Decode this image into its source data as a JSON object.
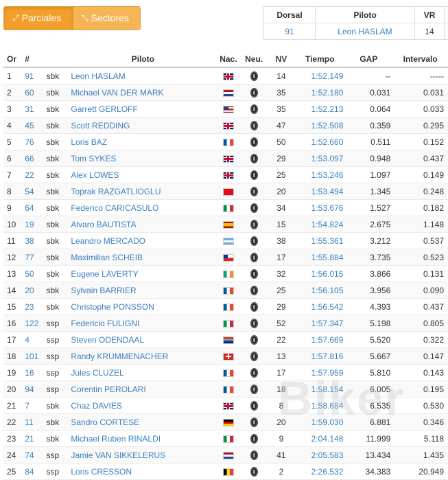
{
  "tabs": {
    "partials": "Parciales",
    "sectors": "Sectores"
  },
  "rider_box": {
    "headers": {
      "dorsal": "Dorsal",
      "piloto": "Piloto",
      "vr": "VR"
    },
    "dorsal": "91",
    "piloto": "Leon HASLAM",
    "vr": "14"
  },
  "table": {
    "headers": {
      "or": "Or",
      "num": "#",
      "piloto": "Piloto",
      "nac": "Nac.",
      "neu": "Neu.",
      "nv": "NV",
      "tiempo": "Tiempo",
      "gap": "GAP",
      "intervalo": "Intervalo"
    },
    "rows": [
      {
        "or": "1",
        "num": "91",
        "cls": "sbk",
        "piloto": "Leon HASLAM",
        "flag": "gb",
        "nv": "14",
        "tiempo": "1:52.149",
        "gap": "--",
        "int": "-----"
      },
      {
        "or": "2",
        "num": "60",
        "cls": "sbk",
        "piloto": "Michael VAN DER MARK",
        "flag": "nl",
        "nv": "35",
        "tiempo": "1:52.180",
        "gap": "0.031",
        "int": "0.031"
      },
      {
        "or": "3",
        "num": "31",
        "cls": "sbk",
        "piloto": "Garrett GERLOFF",
        "flag": "us",
        "nv": "35",
        "tiempo": "1:52.213",
        "gap": "0.064",
        "int": "0.033"
      },
      {
        "or": "4",
        "num": "45",
        "cls": "sbk",
        "piloto": "Scott REDDING",
        "flag": "gb",
        "nv": "47",
        "tiempo": "1:52.508",
        "gap": "0.359",
        "int": "0.295"
      },
      {
        "or": "5",
        "num": "76",
        "cls": "sbk",
        "piloto": "Loris BAZ",
        "flag": "fr",
        "nv": "50",
        "tiempo": "1:52.660",
        "gap": "0.511",
        "int": "0.152"
      },
      {
        "or": "6",
        "num": "66",
        "cls": "sbk",
        "piloto": "Tom SYKES",
        "flag": "gb",
        "nv": "29",
        "tiempo": "1:53.097",
        "gap": "0.948",
        "int": "0.437"
      },
      {
        "or": "7",
        "num": "22",
        "cls": "sbk",
        "piloto": "Alex LOWES",
        "flag": "gb",
        "nv": "25",
        "tiempo": "1:53.246",
        "gap": "1.097",
        "int": "0.149"
      },
      {
        "or": "8",
        "num": "54",
        "cls": "sbk",
        "piloto": "Toprak RAZGATLIOGLU",
        "flag": "tr",
        "nv": "20",
        "tiempo": "1:53.494",
        "gap": "1.345",
        "int": "0.248"
      },
      {
        "or": "9",
        "num": "64",
        "cls": "sbk",
        "piloto": "Federico CARICASULO",
        "flag": "it",
        "nv": "34",
        "tiempo": "1:53.676",
        "gap": "1.527",
        "int": "0.182"
      },
      {
        "or": "10",
        "num": "19",
        "cls": "sbk",
        "piloto": "Alvaro BAUTISTA",
        "flag": "es",
        "nv": "15",
        "tiempo": "1:54.824",
        "gap": "2.675",
        "int": "1.148"
      },
      {
        "or": "11",
        "num": "38",
        "cls": "sbk",
        "piloto": "Leandro MERCADO",
        "flag": "ar",
        "nv": "38",
        "tiempo": "1:55.361",
        "gap": "3.212",
        "int": "0.537"
      },
      {
        "or": "12",
        "num": "77",
        "cls": "sbk",
        "piloto": "Maximilian SCHEIB",
        "flag": "cl",
        "nv": "17",
        "tiempo": "1:55.884",
        "gap": "3.735",
        "int": "0.523"
      },
      {
        "or": "13",
        "num": "50",
        "cls": "sbk",
        "piloto": "Eugene LAVERTY",
        "flag": "ie",
        "nv": "32",
        "tiempo": "1:56.015",
        "gap": "3.866",
        "int": "0.131"
      },
      {
        "or": "14",
        "num": "20",
        "cls": "sbk",
        "piloto": "Sylvain BARRIER",
        "flag": "fr",
        "nv": "25",
        "tiempo": "1:56.105",
        "gap": "3.956",
        "int": "0.090"
      },
      {
        "or": "15",
        "num": "23",
        "cls": "sbk",
        "piloto": "Christophe PONSSON",
        "flag": "fr",
        "nv": "29",
        "tiempo": "1:56.542",
        "gap": "4.393",
        "int": "0.437"
      },
      {
        "or": "16",
        "num": "122",
        "cls": "ssp",
        "piloto": "Federicio FULIGNI",
        "flag": "it",
        "nv": "52",
        "tiempo": "1:57.347",
        "gap": "5.198",
        "int": "0.805"
      },
      {
        "or": "17",
        "num": "4",
        "cls": "ssp",
        "piloto": "Steven ODENDAAL",
        "flag": "za",
        "nv": "22",
        "tiempo": "1:57.669",
        "gap": "5.520",
        "int": "0.322"
      },
      {
        "or": "18",
        "num": "101",
        "cls": "ssp",
        "piloto": "Randy KRUMMENACHER",
        "flag": "ch",
        "nv": "13",
        "tiempo": "1:57.816",
        "gap": "5.667",
        "int": "0.147"
      },
      {
        "or": "19",
        "num": "16",
        "cls": "ssp",
        "piloto": "Jules CLUZEL",
        "flag": "fr",
        "nv": "17",
        "tiempo": "1:57.959",
        "gap": "5.810",
        "int": "0.143"
      },
      {
        "or": "20",
        "num": "94",
        "cls": "ssp",
        "piloto": "Corentin PEROLARI",
        "flag": "fr",
        "nv": "18",
        "tiempo": "1:58.154",
        "gap": "6.005",
        "int": "0.195"
      },
      {
        "or": "21",
        "num": "7",
        "cls": "sbk",
        "piloto": "Chaz DAVIES",
        "flag": "gb",
        "nv": "8",
        "tiempo": "1:58.684",
        "gap": "6.535",
        "int": "0.530"
      },
      {
        "or": "22",
        "num": "11",
        "cls": "sbk",
        "piloto": "Sandro CORTESE",
        "flag": "de",
        "nv": "20",
        "tiempo": "1:59.030",
        "gap": "6.881",
        "int": "0.346"
      },
      {
        "or": "23",
        "num": "21",
        "cls": "sbk",
        "piloto": "Michael Ruben RINALDI",
        "flag": "it",
        "nv": "9",
        "tiempo": "2:04.148",
        "gap": "11.999",
        "int": "5.118"
      },
      {
        "or": "24",
        "num": "74",
        "cls": "ssp",
        "piloto": "Jamie VAN SIKKELERUS",
        "flag": "nl",
        "nv": "41",
        "tiempo": "2:05.583",
        "gap": "13.434",
        "int": "1.435"
      },
      {
        "or": "25",
        "num": "84",
        "cls": "ssp",
        "piloto": "Loris CRESSON",
        "flag": "be",
        "nv": "2",
        "tiempo": "2:26.532",
        "gap": "34.383",
        "int": "20.949"
      }
    ]
  },
  "watermark": "Biker"
}
